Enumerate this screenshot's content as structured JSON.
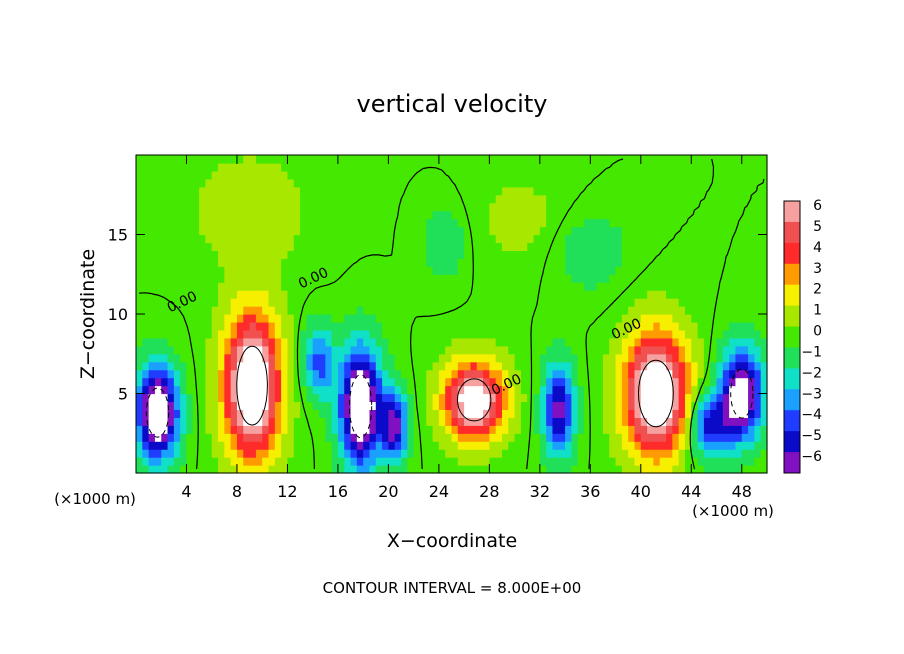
{
  "chart_data": {
    "type": "heatmap",
    "title": "vertical velocity",
    "xlabel": "X−coordinate",
    "ylabel": "Z−coordinate",
    "x_unit_left": "(×1000 m)",
    "x_unit_right": "(×1000 m)",
    "footer": "CONTOUR INTERVAL = 8.000E+00",
    "xlim": [
      0,
      50
    ],
    "ylim": [
      0,
      20
    ],
    "x_ticks": [
      4,
      8,
      12,
      16,
      20,
      24,
      28,
      32,
      36,
      40,
      44,
      48
    ],
    "x_tick_labels": [
      "4",
      "8",
      "12",
      "16",
      "20",
      "24",
      "28",
      "32",
      "36",
      "40",
      "44",
      "48"
    ],
    "y_ticks": [
      5,
      10,
      15
    ],
    "y_tick_labels": [
      "5",
      "10",
      "15"
    ],
    "colorbar": {
      "min": -6,
      "max": 6,
      "levels": [
        6,
        5,
        4,
        3,
        2,
        1,
        0,
        -1,
        -2,
        -3,
        -4,
        -5,
        -6
      ],
      "labels": [
        "6",
        "5",
        "4",
        "3",
        "2",
        "1",
        "0",
        "−1",
        "−2",
        "−3",
        "−4",
        "−5",
        "−6"
      ],
      "colors": [
        "#f7a0a0",
        "#f05050",
        "#ff2a2a",
        "#ff9a00",
        "#f6f000",
        "#a8e800",
        "#44e800",
        "#20e05a",
        "#10e0c8",
        "#1aa0ff",
        "#1f3cff",
        "#0a0ac8",
        "#8010c0"
      ]
    },
    "contour_labels": [
      {
        "text": "0.00",
        "x": 3.8,
        "y": 10.5
      },
      {
        "text": "0.00",
        "x": 14.2,
        "y": 12.0
      },
      {
        "text": "0.00",
        "x": 29.5,
        "y": 5.3
      },
      {
        "text": "0.00",
        "x": 39.0,
        "y": 8.8
      }
    ],
    "cells": [
      {
        "x": 1.7,
        "z": 3.8,
        "w": -9,
        "rx": 1.6,
        "rz": 2.8
      },
      {
        "x": 9.2,
        "z": 5.5,
        "w": 9,
        "rx": 2.2,
        "rz": 4.5
      },
      {
        "x": 17.8,
        "z": 4.2,
        "w": -9,
        "rx": 1.6,
        "rz": 3.6
      },
      {
        "x": 20.5,
        "z": 3.0,
        "w": -6,
        "rx": 1.0,
        "rz": 2.2
      },
      {
        "x": 26.8,
        "z": 4.6,
        "w": 8,
        "rx": 2.4,
        "rz": 2.4
      },
      {
        "x": 33.5,
        "z": 4.0,
        "w": -6,
        "rx": 1.2,
        "rz": 2.8
      },
      {
        "x": 41.2,
        "z": 5.0,
        "w": 9,
        "rx": 2.5,
        "rz": 3.8
      },
      {
        "x": 48.0,
        "z": 5.0,
        "w": -8,
        "rx": 1.6,
        "rz": 2.8
      },
      {
        "x": 24.5,
        "z": 14.6,
        "w": -1.4,
        "rx": 1.6,
        "rz": 2.2
      },
      {
        "x": 9.0,
        "z": 16.5,
        "w": 1.2,
        "rx": 4.5,
        "rz": 3.5
      },
      {
        "x": 30.5,
        "z": 16.0,
        "w": 0.8,
        "rx": 4.0,
        "rz": 3.0
      },
      {
        "x": 36.0,
        "z": 14.0,
        "w": -1.2,
        "rx": 3.0,
        "rz": 2.5
      },
      {
        "x": 14.5,
        "z": 7.0,
        "w": -4,
        "rx": 1.2,
        "rz": 2.2
      },
      {
        "x": 45.5,
        "z": 3.0,
        "w": -5,
        "rx": 1.6,
        "rz": 2.0
      }
    ]
  }
}
